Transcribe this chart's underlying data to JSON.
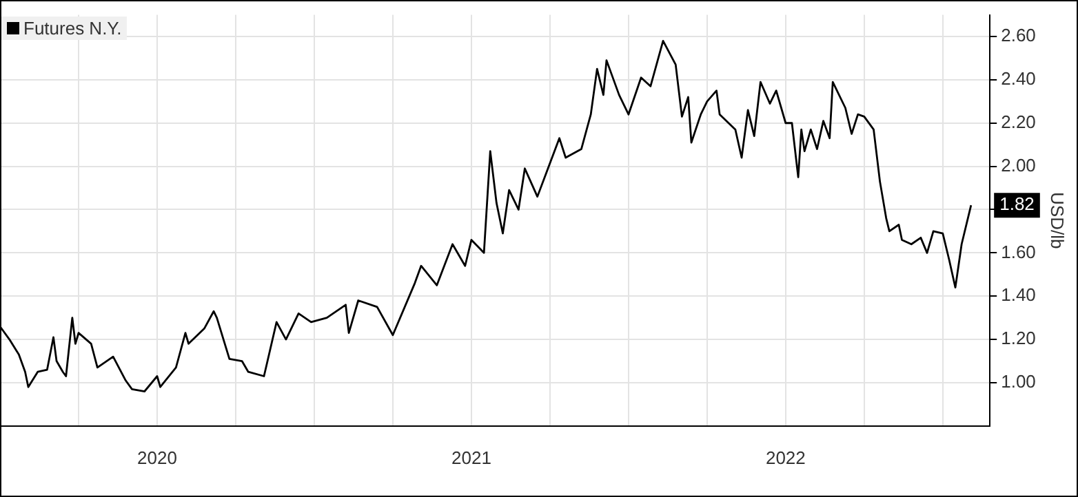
{
  "chart_data": {
    "type": "line",
    "ylabel": "USD/lb",
    "legend": "top left",
    "grid": true,
    "marker": "none",
    "line_style": "solid",
    "xlim": [
      2020.0,
      2023.15
    ],
    "xticks": [
      {
        "value": 2020.25,
        "label": null
      },
      {
        "value": 2020.5,
        "label": "2020"
      },
      {
        "value": 2020.75,
        "label": null
      },
      {
        "value": 2021.0,
        "label": null
      },
      {
        "value": 2021.25,
        "label": null
      },
      {
        "value": 2021.5,
        "label": "2021"
      },
      {
        "value": 2021.75,
        "label": null
      },
      {
        "value": 2022.0,
        "label": null
      },
      {
        "value": 2022.25,
        "label": null
      },
      {
        "value": 2022.5,
        "label": "2022"
      },
      {
        "value": 2022.75,
        "label": null
      },
      {
        "value": 2023.0,
        "label": null
      }
    ],
    "ylim": [
      0.8,
      2.7
    ],
    "yticks": [
      {
        "value": 1.0,
        "label": "1.00"
      },
      {
        "value": 1.2,
        "label": "1.20"
      },
      {
        "value": 1.4,
        "label": "1.40"
      },
      {
        "value": 1.6,
        "label": "1.60"
      },
      {
        "value": 1.8,
        "label": null
      },
      {
        "value": 2.0,
        "label": "2.00"
      },
      {
        "value": 2.2,
        "label": "2.20"
      },
      {
        "value": 2.4,
        "label": "2.40"
      },
      {
        "value": 2.6,
        "label": "2.60"
      }
    ],
    "x": [
      2020.0,
      2020.03,
      2020.06,
      2020.08,
      2020.09,
      2020.12,
      2020.15,
      2020.17,
      2020.18,
      2020.2,
      2020.21,
      2020.23,
      2020.24,
      2020.25,
      2020.29,
      2020.31,
      2020.36,
      2020.4,
      2020.42,
      2020.46,
      2020.5,
      2020.51,
      2020.56,
      2020.59,
      2020.6,
      2020.65,
      2020.68,
      2020.69,
      2020.73,
      2020.77,
      2020.79,
      2020.84,
      2020.88,
      2020.91,
      2020.95,
      2020.99,
      2021.04,
      2021.1,
      2021.11,
      2021.14,
      2021.2,
      2021.25,
      2021.32,
      2021.34,
      2021.39,
      2021.44,
      2021.48,
      2021.5,
      2021.54,
      2021.56,
      2021.58,
      2021.6,
      2021.62,
      2021.65,
      2021.67,
      2021.71,
      2021.78,
      2021.8,
      2021.85,
      2021.88,
      2021.9,
      2021.92,
      2021.93,
      2021.97,
      2022.0,
      2022.04,
      2022.07,
      2022.11,
      2022.15,
      2022.17,
      2022.19,
      2022.2,
      2022.23,
      2022.25,
      2022.28,
      2022.29,
      2022.34,
      2022.36,
      2022.38,
      2022.4,
      2022.42,
      2022.45,
      2022.47,
      2022.5,
      2022.52,
      2022.54,
      2022.55,
      2022.56,
      2022.58,
      2022.6,
      2022.62,
      2022.64,
      2022.65,
      2022.69,
      2022.71,
      2022.73,
      2022.75,
      2022.78,
      2022.8,
      2022.82,
      2022.83,
      2022.86,
      2022.87,
      2022.9,
      2022.93,
      2022.95,
      2022.97,
      2023.0,
      2023.02,
      2023.04,
      2023.05,
      2023.06,
      2023.09
    ],
    "series": [
      {
        "name": "Futures N.Y.",
        "color": "#000000",
        "values": [
          1.26,
          1.2,
          1.13,
          1.05,
          0.98,
          1.05,
          1.06,
          1.21,
          1.1,
          1.05,
          1.03,
          1.3,
          1.18,
          1.23,
          1.18,
          1.07,
          1.12,
          1.01,
          0.97,
          0.96,
          1.03,
          0.98,
          1.07,
          1.23,
          1.18,
          1.25,
          1.33,
          1.3,
          1.11,
          1.1,
          1.05,
          1.03,
          1.28,
          1.2,
          1.32,
          1.28,
          1.3,
          1.36,
          1.23,
          1.38,
          1.35,
          1.22,
          1.46,
          1.54,
          1.45,
          1.64,
          1.54,
          1.66,
          1.6,
          2.07,
          1.83,
          1.69,
          1.89,
          1.8,
          1.99,
          1.86,
          2.13,
          2.04,
          2.08,
          2.24,
          2.45,
          2.33,
          2.49,
          2.33,
          2.24,
          2.41,
          2.37,
          2.58,
          2.47,
          2.23,
          2.32,
          2.11,
          2.24,
          2.3,
          2.35,
          2.24,
          2.17,
          2.04,
          2.26,
          2.14,
          2.39,
          2.29,
          2.35,
          2.2,
          2.2,
          1.95,
          2.17,
          2.07,
          2.17,
          2.08,
          2.21,
          2.13,
          2.39,
          2.27,
          2.15,
          2.24,
          2.23,
          2.17,
          1.93,
          1.76,
          1.7,
          1.73,
          1.66,
          1.64,
          1.67,
          1.6,
          1.7,
          1.69,
          1.57,
          1.44,
          1.54,
          1.64,
          1.82
        ]
      }
    ],
    "annotations": [
      {
        "text": "1.82",
        "y": 1.82
      }
    ]
  }
}
